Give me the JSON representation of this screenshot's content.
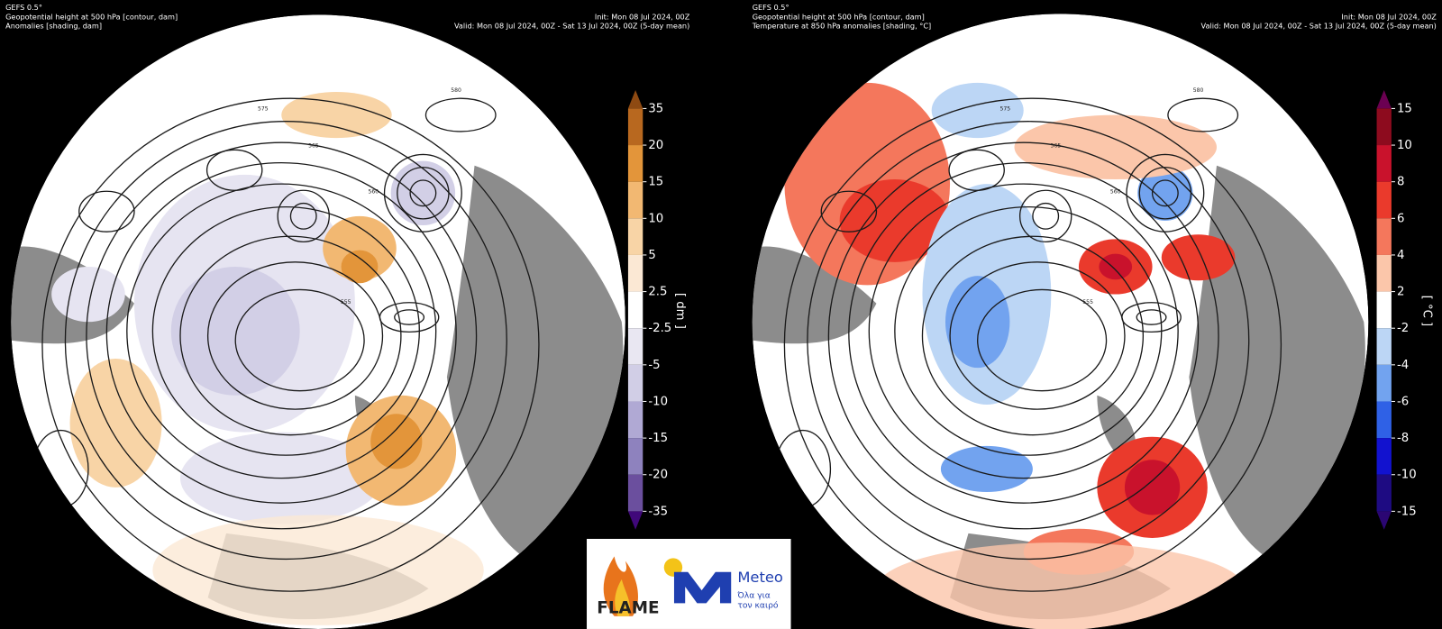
{
  "panels": [
    {
      "header": {
        "model": "GEFS 0.5°",
        "title": "Geopotential height at 500 hPa [contour, dam]",
        "subtitle": "Anomalies [shading, dam]",
        "init": "Init: Mon 08 Jul 2024, 00Z",
        "valid": "Valid: Mon 08 Jul 2024, 00Z - Sat 13 Jul 2024, 00Z (5-day mean)"
      },
      "colorbar": {
        "unit": "[ dm ]",
        "ticks": [
          35,
          20,
          15,
          10,
          5,
          2.5,
          -2.5,
          -5,
          -10,
          -15,
          -20,
          -35
        ],
        "colors": [
          "#b8681f",
          "#e3953a",
          "#f2b872",
          "#f8d4a6",
          "#fbe8d4",
          "#ffffff",
          "#e9e7f2",
          "#d1cee6",
          "#b0a9d4",
          "#8e82be",
          "#6b4f9e"
        ],
        "extend_colors": [
          "#8e4a12",
          "#40087a"
        ]
      },
      "contour_labels": [
        "580",
        "575",
        "565",
        "560",
        "555"
      ]
    },
    {
      "header": {
        "model": "GEFS 0.5°",
        "title": "Geopotential height at 500 hPa [contour, dam]",
        "subtitle": "Temperature at 850 hPa anomalies [shading, °C]",
        "init": "Init: Mon 08 Jul 2024, 00Z",
        "valid": "Valid: Mon 08 Jul 2024, 00Z - Sat 13 Jul 2024, 00Z (5-day mean)"
      },
      "colorbar": {
        "unit": "[ °C ]",
        "ticks": [
          15,
          10,
          8,
          6,
          4,
          2,
          -2,
          -4,
          -6,
          -8,
          -10,
          -15
        ],
        "colors": [
          "#8d0b1e",
          "#c9122c",
          "#ea3a2c",
          "#f4775c",
          "#fbc6aa",
          "#ffffff",
          "#bcd6f5",
          "#72a3ef",
          "#2f61e6",
          "#1212cf",
          "#1e0b82"
        ],
        "extend_colors": [
          "#6b0052",
          "#2b0673"
        ]
      },
      "contour_labels": [
        "580",
        "575",
        "565",
        "560",
        "555"
      ]
    }
  ],
  "logo": {
    "left": "FLAME",
    "right": "Meteo",
    "tagline_1": "Όλα για",
    "tagline_2": "τον καιρό"
  }
}
